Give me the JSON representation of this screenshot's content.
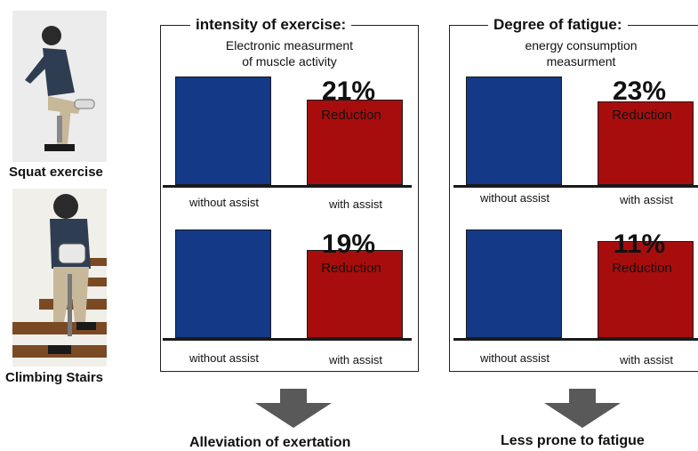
{
  "left_images": [
    {
      "label": "Squat exercise"
    },
    {
      "label": "Climbing Stairs"
    }
  ],
  "panels": [
    {
      "title": "intensity of exercise:",
      "subtitle_lines": [
        "Electronic measurment",
        "of muscle activity"
      ],
      "conclusion": "Alleviation of exertation"
    },
    {
      "title": "Degree of fatigue:",
      "subtitle_lines": [
        "energy consumption",
        "measurment"
      ],
      "conclusion": "Less prone to fatigue"
    }
  ],
  "reduction_label": "Reduction",
  "colors": {
    "without_assist": "#143a87",
    "with_assist": "#a80d0d",
    "arrow": "#595959"
  },
  "chart_data": [
    {
      "type": "bar",
      "title": "intensity of exercise: Squat exercise",
      "categories": [
        "without assist",
        "with assist"
      ],
      "values": [
        100,
        79
      ],
      "reduction_text": "21%"
    },
    {
      "type": "bar",
      "title": "intensity of exercise: Climbing Stairs",
      "categories": [
        "without assist",
        "with assist"
      ],
      "values": [
        100,
        81
      ],
      "reduction_text": "19%"
    },
    {
      "type": "bar",
      "title": "Degree of fatigue: Squat exercise",
      "categories": [
        "without assist",
        "with assist"
      ],
      "values": [
        100,
        77
      ],
      "reduction_text": "23%"
    },
    {
      "type": "bar",
      "title": "Degree of fatigue: Climbing Stairs",
      "categories": [
        "without assist",
        "with assist"
      ],
      "values": [
        100,
        89
      ],
      "reduction_text": "11%"
    }
  ]
}
